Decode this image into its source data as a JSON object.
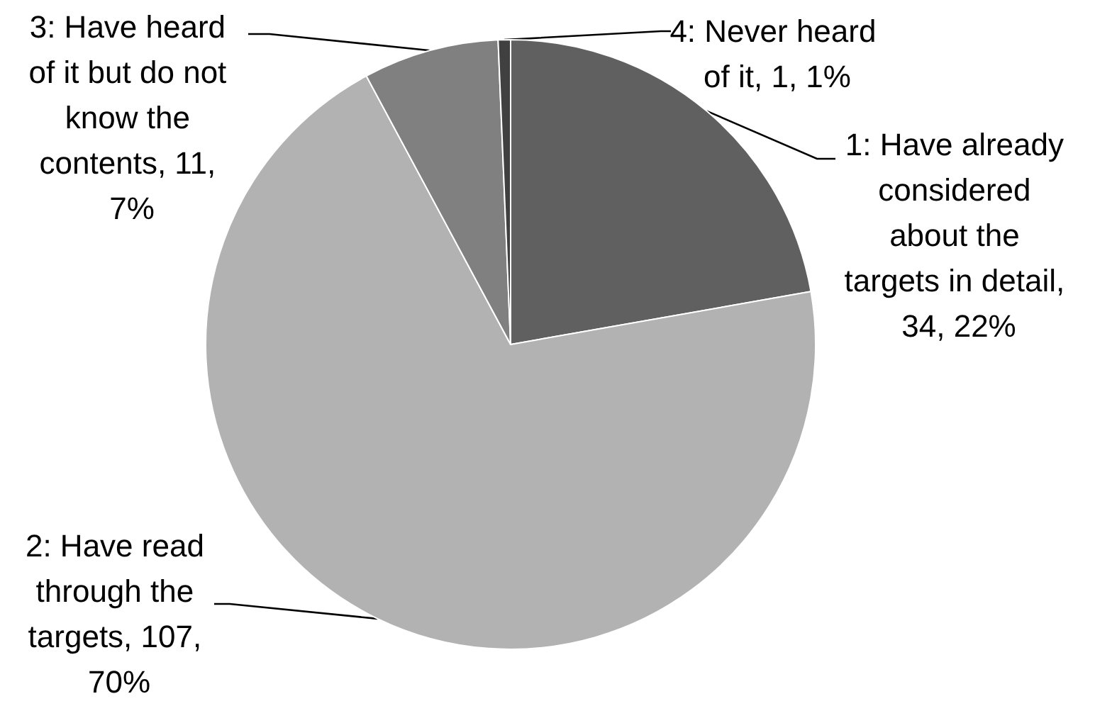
{
  "chart_data": {
    "type": "pie",
    "categories": [
      "1: Have already considered about the targets in detail, 34, 22%",
      "2: Have read through the targets, 107, 70%",
      "3: Have heard of it but do not know the contents, 11, 7%",
      "4: Never heard of it, 1, 1%"
    ],
    "values": [
      34,
      107,
      11,
      1
    ],
    "colors": [
      "#606060",
      "#b2b2b2",
      "#808080",
      "#404040"
    ]
  }
}
